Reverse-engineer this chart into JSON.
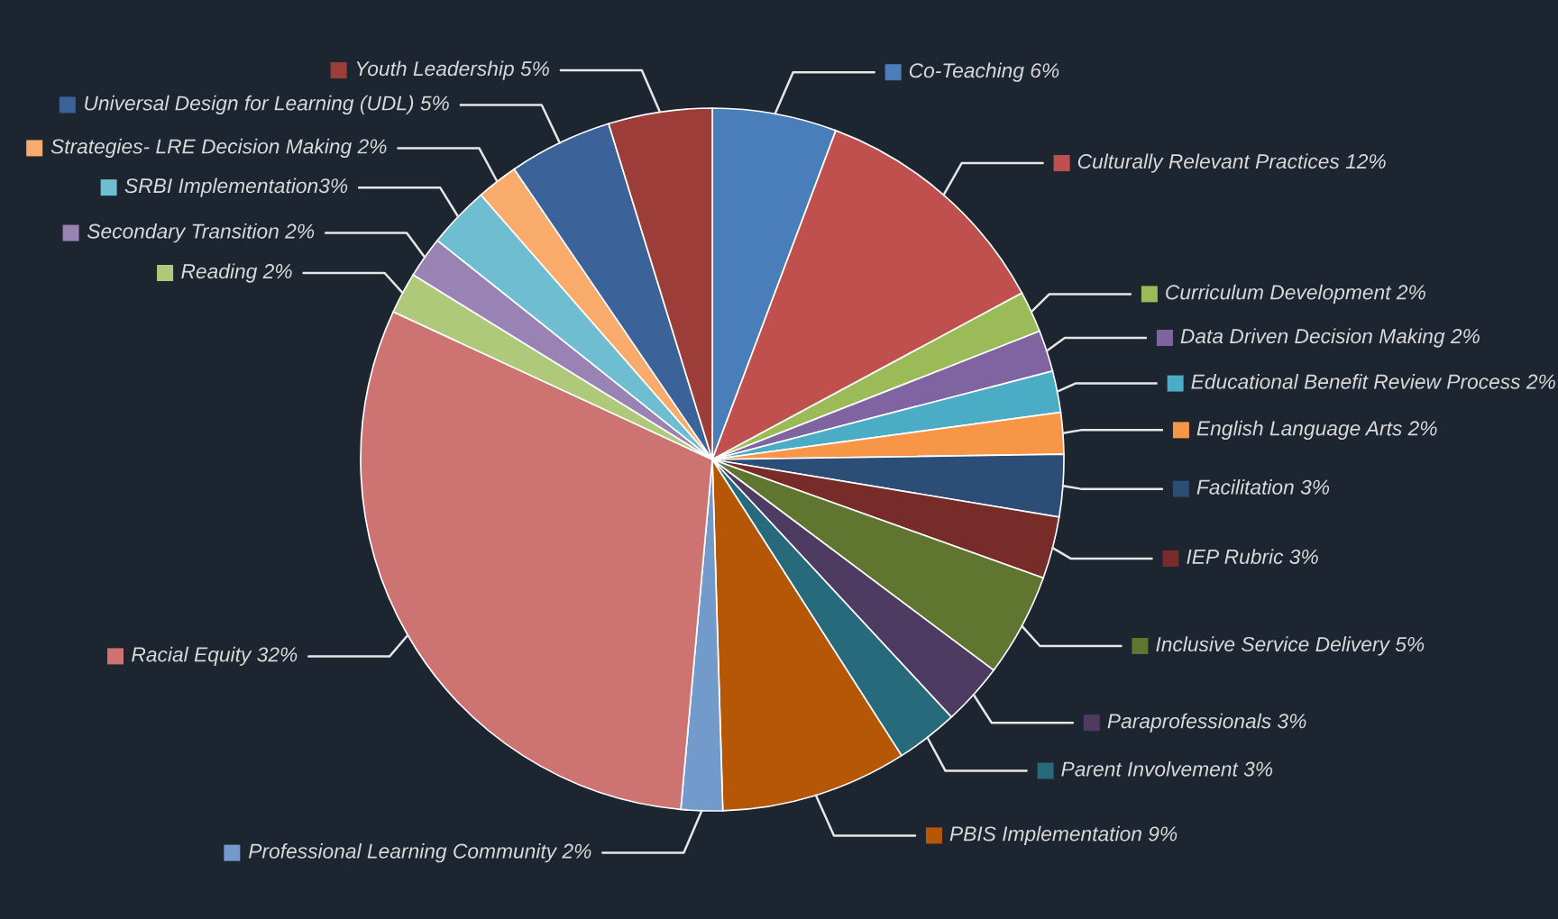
{
  "chart_data": {
    "type": "pie",
    "legend": "right",
    "categories": [
      "Co-Teaching 6%",
      "Culturally Relevant Practices 12%",
      "Curriculum Development 2%",
      "Data Driven Decision Making 2%",
      "Educational Benefit Review Process 2%",
      "English Language Arts 2%",
      "Facilitation 3%",
      "IEP Rubric 3%",
      "Inclusive Service Delivery 5%",
      "Paraprofessionals 3%",
      "Parent Involvement 3%",
      "PBIS Implementation 9%",
      "Professional Learning Community 2%",
      "Racial Equity 32%",
      "Reading 2%",
      "Secondary Transition 2%",
      "SRBI Implementation3%",
      "Strategies- LRE Decision Making 2%",
      "Universal Design for Learning (UDL) 5%",
      "Youth Leadership 5%"
    ],
    "values": [
      6,
      12,
      2,
      2,
      2,
      2,
      3,
      3,
      5,
      3,
      3,
      9,
      2,
      32,
      2,
      2,
      3,
      2,
      5,
      5
    ],
    "colors": [
      "#4a7ebb",
      "#c0504d",
      "#9bbb59",
      "#8064a2",
      "#4bacc6",
      "#f79646",
      "#2c4d75",
      "#772c2a",
      "#5f7530",
      "#4d3b62",
      "#276a7c",
      "#b65708",
      "#729aca",
      "#cd7371",
      "#afc97a",
      "#9983b5",
      "#6fbdd1",
      "#f9ab6b",
      "#3c6399",
      "#9c3d3a"
    ]
  }
}
